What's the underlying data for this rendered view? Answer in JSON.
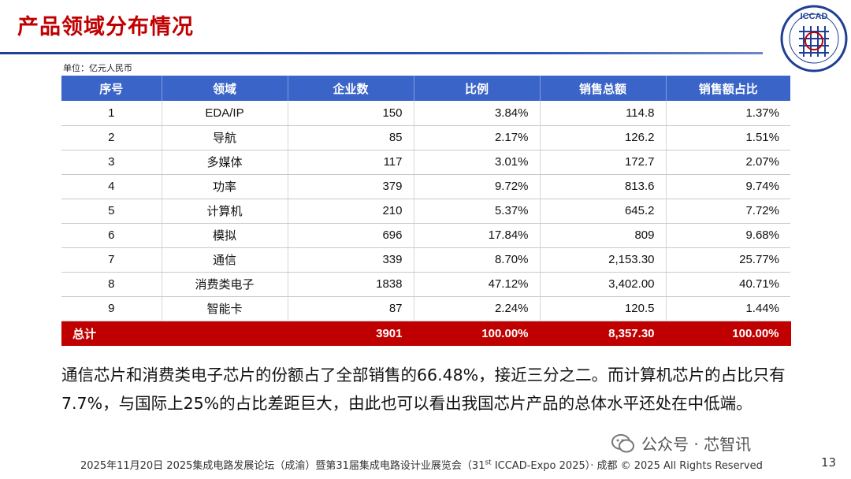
{
  "header": {
    "title": "产品领域分布情况",
    "logo_text": "ICCAD"
  },
  "unit": "单位：亿元人民币",
  "table": {
    "columns": [
      "序号",
      "领域",
      "企业数",
      "比例",
      "销售总额",
      "销售额占比"
    ],
    "rows": [
      [
        "1",
        "EDA/IP",
        "150",
        "3.84%",
        "114.8",
        "1.37%"
      ],
      [
        "2",
        "导航",
        "85",
        "2.17%",
        "126.2",
        "1.51%"
      ],
      [
        "3",
        "多媒体",
        "117",
        "3.01%",
        "172.7",
        "2.07%"
      ],
      [
        "4",
        "功率",
        "379",
        "9.72%",
        "813.6",
        "9.74%"
      ],
      [
        "5",
        "计算机",
        "210",
        "5.37%",
        "645.2",
        "7.72%"
      ],
      [
        "6",
        "模拟",
        "696",
        "17.84%",
        "809",
        "9.68%"
      ],
      [
        "7",
        "通信",
        "339",
        "8.70%",
        "2,153.30",
        "25.77%"
      ],
      [
        "8",
        "消费类电子",
        "1838",
        "47.12%",
        "3,402.00",
        "40.71%"
      ],
      [
        "9",
        "智能卡",
        "87",
        "2.24%",
        "120.5",
        "1.44%"
      ]
    ],
    "total": [
      "总计",
      "",
      "3901",
      "100.00%",
      "8,357.30",
      "100.00%"
    ]
  },
  "paragraph": "通信芯片和消费类电子芯片的份额占了全部销售的66.48%，接近三分之二。而计算机芯片的占比只有7.7%，与国际上25%的占比差距巨大，由此也可以看出我国芯片产品的总体水平还处在中低端。",
  "footer": {
    "text_before": "2025年11月20日 2025集成电路发展论坛（成渝）暨第31届集成电路设计业展览会（31",
    "sup": "st",
    "text_after": " ICCAD-Expo 2025）· 成都 © 2025 All Rights Reserved",
    "page_number": "13"
  },
  "wechat_watermark": "公众号 · 芯智讯",
  "colors": {
    "title_red": "#c00000",
    "header_blue": "#3b64c8",
    "total_red": "#c00000"
  }
}
